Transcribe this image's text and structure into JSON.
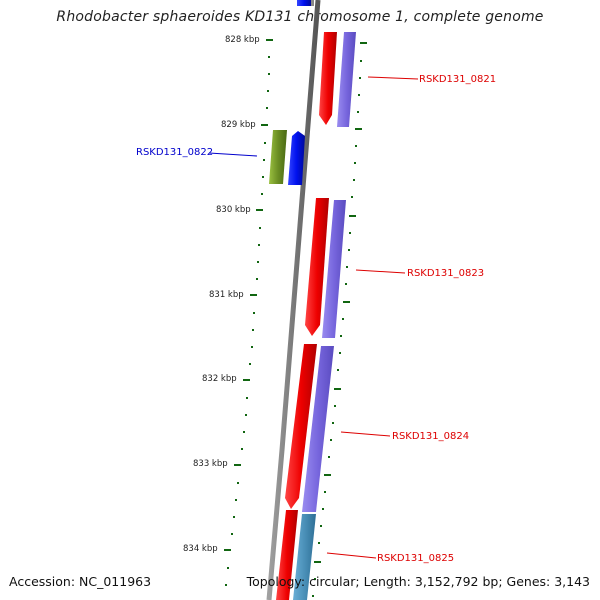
{
  "title": "Rhodobacter sphaeroides KD131 chromosome 1, complete genome",
  "footer": {
    "accession": "Accession: NC_011963",
    "topology": "Topology: circular; Length: 3,152,792 bp; Genes: 3,143"
  },
  "scale_labels": [
    "828 kbp",
    "829 kbp",
    "830 kbp",
    "831 kbp",
    "832 kbp",
    "833 kbp",
    "834 kbp"
  ],
  "gene_labels": [
    {
      "name": "RSKD131_0821",
      "color": "#dd0000"
    },
    {
      "name": "RSKD131_0822",
      "color": "#0000cc"
    },
    {
      "name": "RSKD131_0823",
      "color": "#dd0000"
    },
    {
      "name": "RSKD131_0824",
      "color": "#dd0000"
    },
    {
      "name": "RSKD131_0825",
      "color": "#dd0000"
    }
  ],
  "colors": {
    "backbone": "#7a7a7a",
    "cds_forward": "#ee0000",
    "cds_reverse_lane": "#7766dd",
    "gene_blue": "#0011ee",
    "gene_olive": "#6b8e23",
    "gene_teal": "#4a90b8",
    "tick_green": "#116611"
  }
}
